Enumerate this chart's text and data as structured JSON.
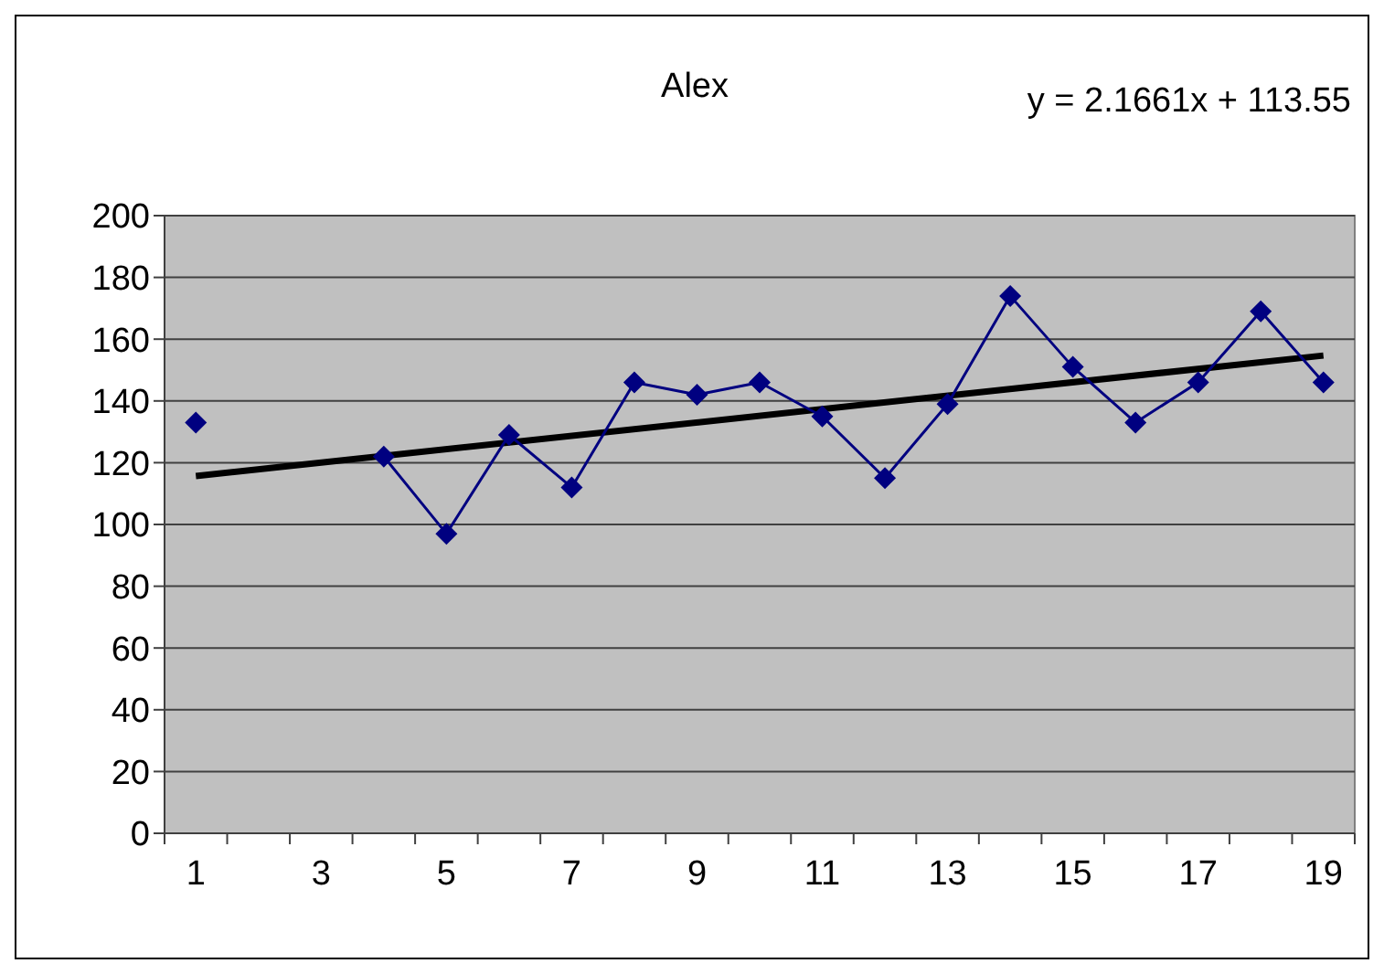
{
  "chart_data": {
    "type": "line",
    "title": "Alex",
    "annotations": [
      "y = 2.1661x + 113.55"
    ],
    "x": [
      1,
      2,
      3,
      4,
      5,
      6,
      7,
      8,
      9,
      10,
      11,
      12,
      13,
      14,
      15,
      16,
      17,
      18,
      19
    ],
    "series": [
      {
        "color": "#000080",
        "marker": "diamond",
        "values": [
          133,
          null,
          null,
          122,
          97,
          129,
          112,
          146,
          142,
          146,
          135,
          115,
          139,
          174,
          151,
          133,
          146,
          169,
          146
        ]
      },
      {
        "color": "#000000",
        "marker": "none",
        "x": [
          1,
          19
        ],
        "values": [
          115.7,
          154.7
        ]
      }
    ],
    "xlim": [
      0.5,
      19.5
    ],
    "xticks": [
      {
        "value": 0.5,
        "label": null
      },
      1,
      {
        "value": 1.5,
        "label": null
      },
      {
        "value": 2.5,
        "label": null
      },
      3,
      {
        "value": 3.5,
        "label": null
      },
      {
        "value": 4.5,
        "label": null
      },
      5,
      {
        "value": 5.5,
        "label": null
      },
      {
        "value": 6.5,
        "label": null
      },
      7,
      {
        "value": 7.5,
        "label": null
      },
      {
        "value": 8.5,
        "label": null
      },
      9,
      {
        "value": 9.5,
        "label": null
      },
      {
        "value": 10.5,
        "label": null
      },
      11,
      {
        "value": 11.5,
        "label": null
      },
      {
        "value": 12.5,
        "label": null
      },
      13,
      {
        "value": 13.5,
        "label": null
      },
      {
        "value": 14.5,
        "label": null
      },
      15,
      {
        "value": 15.5,
        "label": null
      },
      {
        "value": 16.5,
        "label": null
      },
      17,
      {
        "value": 17.5,
        "label": null
      },
      {
        "value": 18.5,
        "label": null
      },
      19,
      {
        "value": 19.5,
        "label": null
      }
    ],
    "ylim": [
      0,
      200
    ],
    "yticks": [
      0,
      20,
      40,
      60,
      80,
      100,
      120,
      140,
      160,
      180,
      200
    ],
    "grid": "y"
  }
}
